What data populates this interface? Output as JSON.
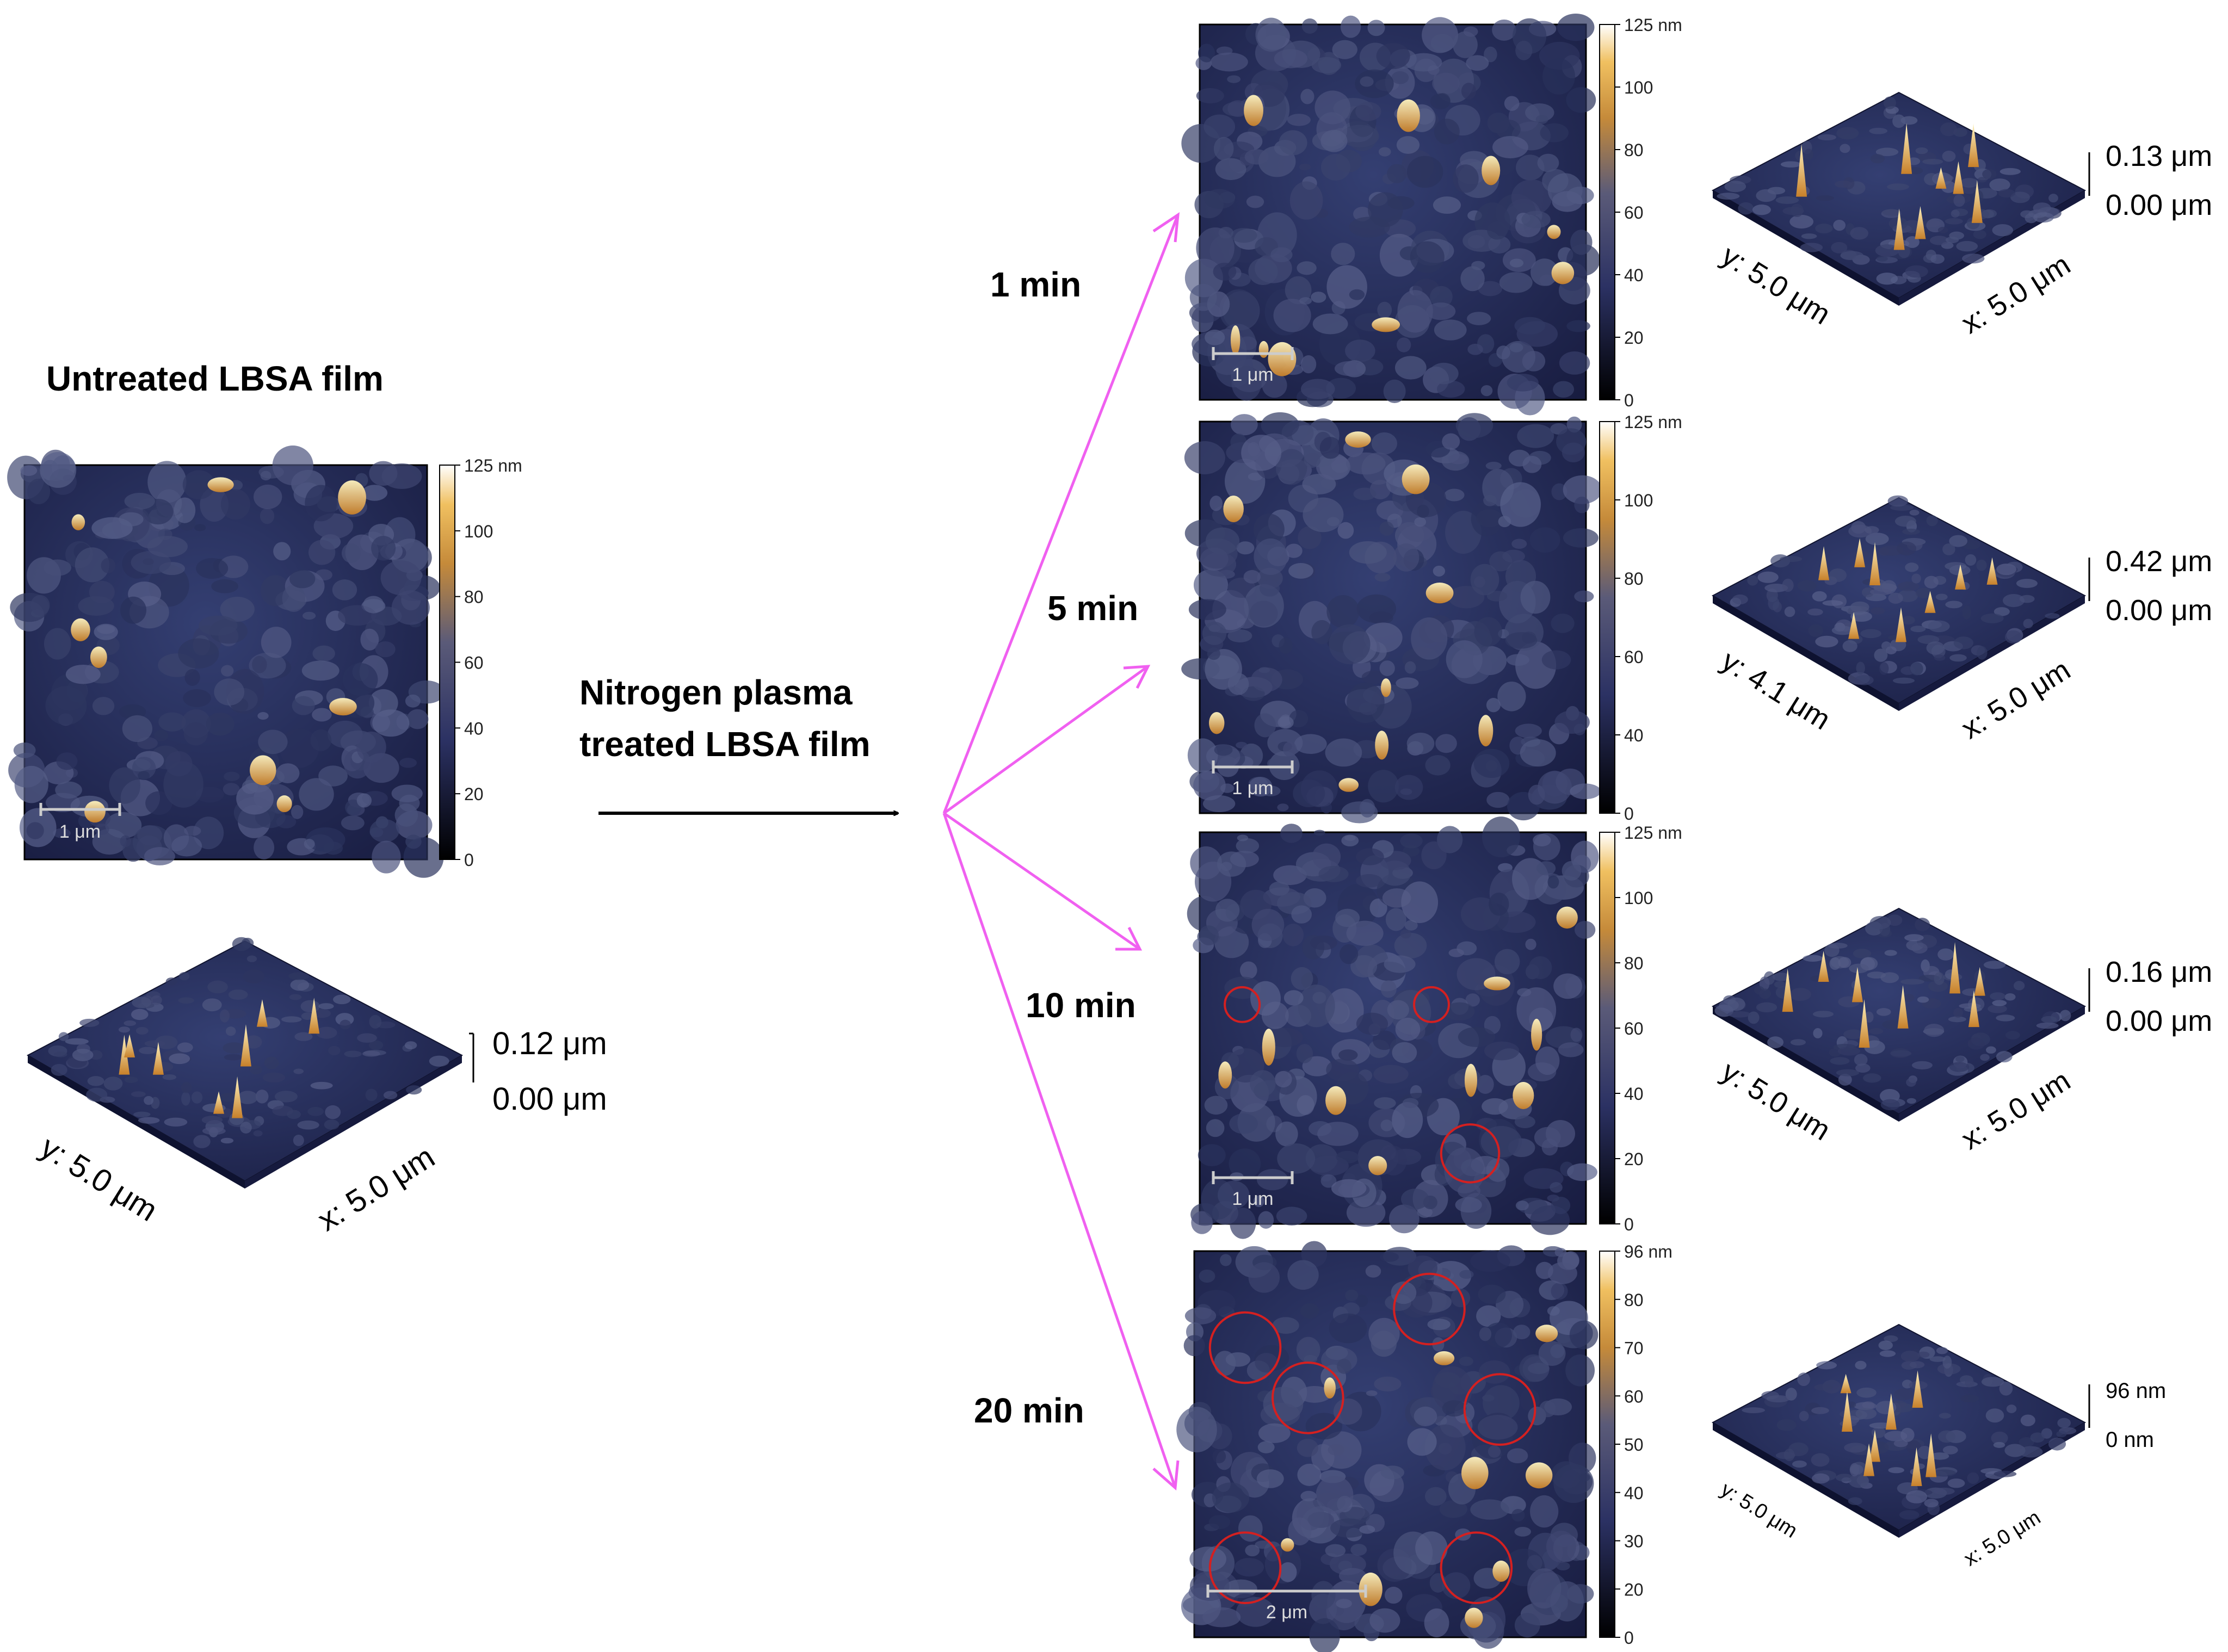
{
  "untreated": {
    "title": "Untreated LBSA film",
    "scale_bar": "1 μm",
    "colorbar_ticks": [
      "125 nm",
      "100",
      "80",
      "60",
      "40",
      "20",
      "0"
    ],
    "z_max": "0.12 μm",
    "z_min": "0.00 μm",
    "y_axis": "y: 5.0 μm",
    "x_axis": "x: 5.0 μm"
  },
  "treatment": {
    "line1": "Nitrogen plasma",
    "line2": "treated LBSA film"
  },
  "colors": {
    "surface_dark": "#1a1f45",
    "surface_mid": "#2e3868",
    "peak": "#e8a040",
    "arrow_pink": "#f060f0",
    "circle_red": "#d42020"
  },
  "panels": [
    {
      "time": "1 min",
      "scale_bar": "1 μm",
      "colorbar_ticks": [
        "125 nm",
        "100",
        "80",
        "60",
        "40",
        "20",
        "0"
      ],
      "z_max": "0.13 μm",
      "z_min": "0.00 μm",
      "y_axis": "y: 5.0 μm",
      "x_axis": "x: 5.0 μm"
    },
    {
      "time": "5 min",
      "scale_bar": "1 μm",
      "colorbar_ticks": [
        "125 nm",
        "100",
        "80",
        "60",
        "40",
        "0"
      ],
      "z_max": "0.42 μm",
      "z_min": "0.00 μm",
      "y_axis": "y: 4.1 μm",
      "x_axis": "x: 5.0 μm"
    },
    {
      "time": "10 min",
      "scale_bar": "1 μm",
      "colorbar_ticks": [
        "125 nm",
        "100",
        "80",
        "60",
        "40",
        "20",
        "0"
      ],
      "z_max": "0.16 μm",
      "z_min": "0.00 μm",
      "y_axis": "y: 5.0 μm",
      "x_axis": "x: 5.0 μm"
    },
    {
      "time": "20 min",
      "scale_bar": "2 μm",
      "colorbar_ticks": [
        "96 nm",
        "80",
        "70",
        "60",
        "50",
        "40",
        "30",
        "20",
        "0"
      ],
      "z_max": "96 nm",
      "z_min": "0 nm",
      "y_axis": "y: 5.0 μm",
      "x_axis": "x: 5.0 μm"
    }
  ]
}
